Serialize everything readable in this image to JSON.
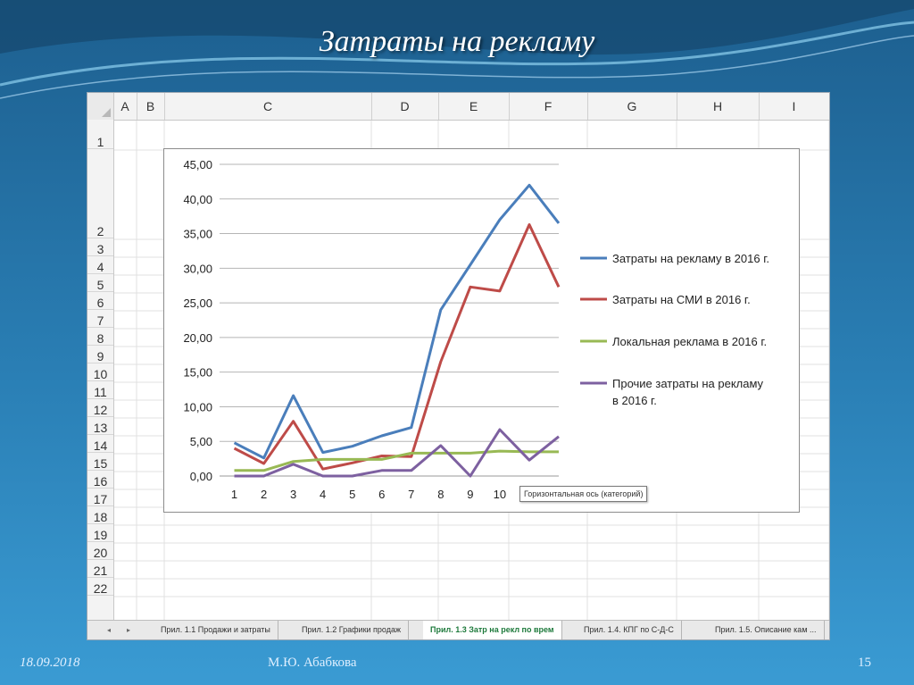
{
  "slide": {
    "title": "Затраты на рекламу",
    "date": "18.09.2018",
    "author": "М.Ю. Абабкова",
    "page_number": "15"
  },
  "spreadsheet": {
    "columns": [
      "A",
      "B",
      "C",
      "D",
      "E",
      "F",
      "G",
      "H",
      "I"
    ],
    "rows": [
      "1",
      "2",
      "3",
      "4",
      "5",
      "6",
      "7",
      "8",
      "9",
      "10",
      "11",
      "12",
      "13",
      "14",
      "15",
      "16",
      "17",
      "18",
      "19",
      "20",
      "21",
      "22"
    ],
    "tabs": [
      "Прил. 1.1 Продажи и затраты",
      "Прил. 1.2 Графики продаж",
      "Прил. 1.3 Затр на рекл по врем",
      "Прил. 1.4. КПГ по С-Д-С",
      "Прил. 1.5. Описание кам ..."
    ],
    "active_tab": 2,
    "tooltip": "Горизонтальная ось (категорий)"
  },
  "chart_data": {
    "type": "line",
    "x": [
      1,
      2,
      3,
      4,
      5,
      6,
      7,
      8,
      9,
      10,
      11,
      12
    ],
    "x_tick_labels": [
      "1",
      "2",
      "3",
      "4",
      "5",
      "6",
      "7",
      "8",
      "9",
      "10",
      "11",
      ""
    ],
    "ylim": [
      0,
      45
    ],
    "y_ticks": [
      "0,00",
      "5,00",
      "10,00",
      "15,00",
      "20,00",
      "25,00",
      "30,00",
      "35,00",
      "40,00",
      "45,00"
    ],
    "grid": true,
    "legend_position": "right",
    "series": [
      {
        "name": "Затраты на рекламу в 2016 г.",
        "color": "#4a7ebb",
        "values": [
          4.8,
          2.6,
          11.6,
          3.4,
          4.3,
          5.8,
          7.0,
          24.0,
          30.5,
          37.0,
          42.0,
          36.5
        ]
      },
      {
        "name": "Затраты на СМИ в 2016 г.",
        "color": "#be4b48",
        "values": [
          4.0,
          1.8,
          7.9,
          1.0,
          1.9,
          2.9,
          2.8,
          16.5,
          27.3,
          26.7,
          36.3,
          27.3
        ]
      },
      {
        "name": "Локальная реклама в 2016 г.",
        "color": "#98b954",
        "values": [
          0.8,
          0.8,
          2.1,
          2.4,
          2.4,
          2.4,
          3.3,
          3.3,
          3.3,
          3.6,
          3.5,
          3.5
        ]
      },
      {
        "name": "Прочие затраты на рекламу в 2016 г.",
        "color": "#7d60a0",
        "values": [
          0.0,
          0.0,
          1.7,
          0.0,
          0.0,
          0.8,
          0.8,
          4.4,
          0.0,
          6.7,
          2.3,
          5.7
        ]
      }
    ]
  }
}
